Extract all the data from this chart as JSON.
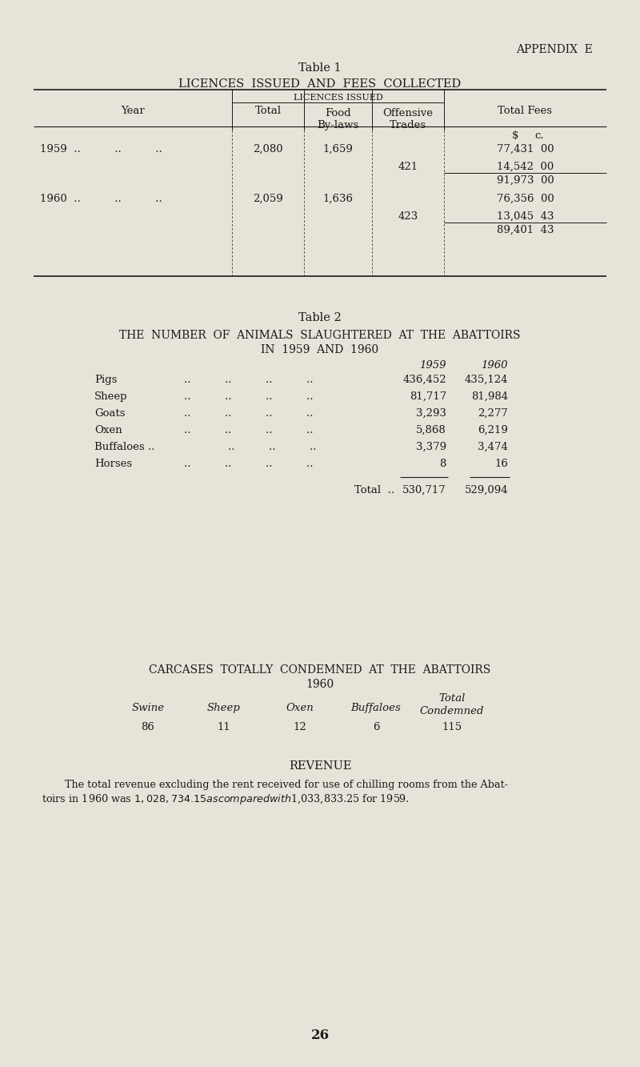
{
  "bg_color": "#e8e3d8",
  "text_color": "#1a1a1a",
  "appendix_label": "APPENDIX  E",
  "table1_title": "Table 1",
  "table1_subtitle": "LICENCES  ISSUED  AND  FEES  COLLECTED",
  "table1_header_licences": "LICENCES ISSUED",
  "table1_col_year": "Year",
  "table1_col_total": "Total",
  "table1_col_food": "Food\nBy-laws",
  "table1_col_offensive": "Offensive\nTrades",
  "table1_col_fees": "Total Fees",
  "table2_title": "Table 2",
  "table2_subtitle_line1": "THE  NUMBER  OF  ANIMALS  SLAUGHTERED  AT  THE  ABATTOIRS",
  "table2_subtitle_line2": "IN  1959  AND  1960",
  "table2_col_1959": "1959",
  "table2_col_1960": "1960",
  "table2_animals": [
    {
      "name": "Pigs",
      "val1959": "436,452",
      "val1960": "435,124"
    },
    {
      "name": "Sheep",
      "val1959": "81,717",
      "val1960": "81,984"
    },
    {
      "name": "Goats",
      "val1959": "3,293",
      "val1960": "2,277"
    },
    {
      "name": "Oxen",
      "val1959": "5,868",
      "val1960": "6,219"
    },
    {
      "name": "Buffaloes ..",
      "val1959": "3,379",
      "val1960": "3,474"
    },
    {
      "name": "Horses",
      "val1959": "8",
      "val1960": "16"
    }
  ],
  "table2_total_label": "Total  ..",
  "table2_total_1959": "530,717",
  "table2_total_1960": "529,094",
  "carcases_title_line1": "CARCASES  TOTALLY  CONDEMNED  AT  THE  ABATTOIRS",
  "carcases_title_line2": "1960",
  "carcases_col_swine": "Swine",
  "carcases_col_sheep": "Sheep",
  "carcases_col_oxen": "Oxen",
  "carcases_col_buffaloes": "Buffaloes",
  "carcases_col_total_1": "Total",
  "carcases_col_total_2": "Condemned",
  "carcases_vals": [
    "86",
    "11",
    "12",
    "6",
    "115"
  ],
  "revenue_title": "REVENUE",
  "revenue_line1": "    The total revenue excluding the rent received for use of chilling rooms from the Abat-",
  "revenue_line2": "toirs in 1960 was $1,028,734.15 as compared with $1,033,833.25 for 1959.",
  "page_number": "26"
}
